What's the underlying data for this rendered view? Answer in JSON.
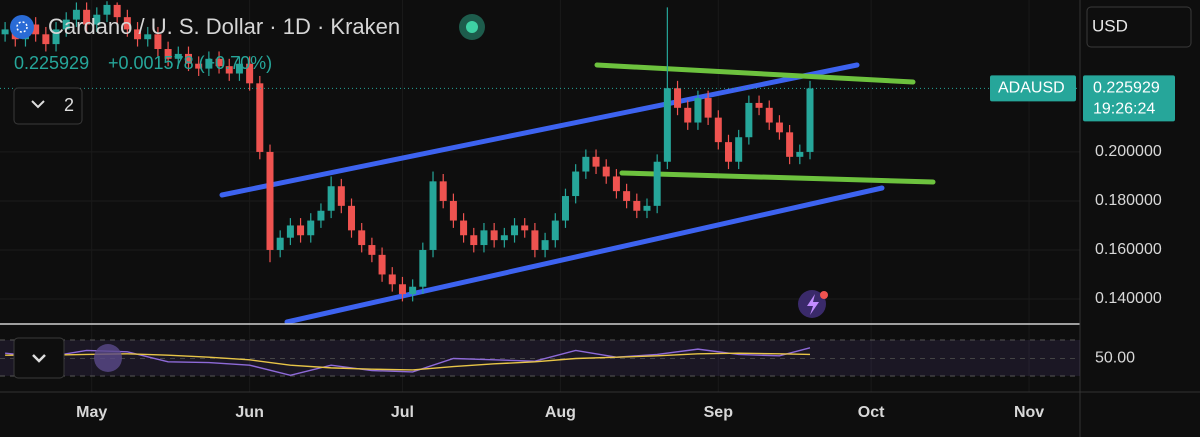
{
  "chart_data": {
    "type": "candlestick",
    "title": "Cardano / U. S. Dollar · 1D · Kraken",
    "last_price": 0.225929,
    "change": "+0.001578 (+0.70%)",
    "indicator_count": 2,
    "currency": "USD",
    "symbol": "ADAUSD",
    "countdown": "19:26:24",
    "up_color": "#26a69a",
    "down_color": "#ef5350",
    "grid": true,
    "xlim": [
      0,
      212
    ],
    "xticks": [
      {
        "value": 18,
        "label": "May"
      },
      {
        "value": 49,
        "label": "Jun"
      },
      {
        "value": 79,
        "label": "Jul"
      },
      {
        "value": 110,
        "label": "Aug"
      },
      {
        "value": 141,
        "label": "Sep"
      },
      {
        "value": 171,
        "label": "Oct"
      },
      {
        "value": 202,
        "label": "Nov"
      }
    ],
    "ylim": [
      0.1306,
      0.262
    ],
    "yticks": [
      {
        "value": 0.14,
        "label": "0.140000"
      },
      {
        "value": 0.16,
        "label": "0.160000"
      },
      {
        "value": 0.18,
        "label": "0.180000"
      },
      {
        "value": 0.2,
        "label": "0.200000"
      }
    ],
    "x": [
      1,
      3,
      5,
      7,
      9,
      11,
      13,
      15,
      17,
      19,
      21,
      23,
      25,
      27,
      29,
      31,
      33,
      35,
      37,
      39,
      41,
      43,
      45,
      47,
      49,
      51,
      53,
      55,
      57,
      59,
      61,
      63,
      65,
      67,
      69,
      71,
      73,
      75,
      77,
      79,
      81,
      83,
      85,
      87,
      89,
      91,
      93,
      95,
      97,
      99,
      101,
      103,
      105,
      107,
      109,
      111,
      113,
      115,
      117,
      119,
      121,
      123,
      125,
      127,
      129,
      131,
      133,
      135,
      137,
      139,
      141,
      143,
      145,
      147,
      149,
      151,
      153,
      155,
      157,
      159
    ],
    "open": [
      0.248,
      0.25,
      0.246,
      0.252,
      0.248,
      0.244,
      0.25,
      0.254,
      0.258,
      0.252,
      0.256,
      0.26,
      0.255,
      0.25,
      0.246,
      0.248,
      0.242,
      0.238,
      0.24,
      0.236,
      0.234,
      0.238,
      0.235,
      0.232,
      0.236,
      0.228,
      0.2,
      0.16,
      0.165,
      0.17,
      0.166,
      0.172,
      0.176,
      0.186,
      0.178,
      0.168,
      0.162,
      0.158,
      0.15,
      0.146,
      0.142,
      0.145,
      0.16,
      0.188,
      0.18,
      0.172,
      0.166,
      0.162,
      0.168,
      0.164,
      0.166,
      0.17,
      0.168,
      0.16,
      0.164,
      0.172,
      0.182,
      0.192,
      0.198,
      0.194,
      0.19,
      0.184,
      0.18,
      0.176,
      0.178,
      0.196,
      0.226,
      0.218,
      0.212,
      0.222,
      0.214,
      0.204,
      0.196,
      0.206,
      0.22,
      0.218,
      0.212,
      0.208,
      0.198,
      0.2
    ],
    "high": [
      0.253,
      0.253,
      0.255,
      0.255,
      0.251,
      0.253,
      0.257,
      0.261,
      0.261,
      0.259,
      0.2615,
      0.261,
      0.258,
      0.253,
      0.251,
      0.251,
      0.245,
      0.243,
      0.243,
      0.239,
      0.241,
      0.241,
      0.238,
      0.239,
      0.239,
      0.231,
      0.203,
      0.168,
      0.173,
      0.173,
      0.175,
      0.179,
      0.19,
      0.189,
      0.181,
      0.171,
      0.165,
      0.161,
      0.153,
      0.149,
      0.148,
      0.163,
      0.192,
      0.191,
      0.183,
      0.175,
      0.169,
      0.171,
      0.171,
      0.169,
      0.173,
      0.173,
      0.171,
      0.167,
      0.175,
      0.185,
      0.195,
      0.201,
      0.201,
      0.197,
      0.193,
      0.187,
      0.183,
      0.181,
      0.199,
      0.259,
      0.229,
      0.221,
      0.225,
      0.225,
      0.217,
      0.207,
      0.209,
      0.223,
      0.223,
      0.221,
      0.215,
      0.211,
      0.203,
      0.229
    ],
    "low": [
      0.245,
      0.243,
      0.243,
      0.245,
      0.241,
      0.241,
      0.247,
      0.251,
      0.249,
      0.249,
      0.253,
      0.252,
      0.247,
      0.243,
      0.243,
      0.239,
      0.235,
      0.235,
      0.233,
      0.231,
      0.231,
      0.232,
      0.229,
      0.229,
      0.225,
      0.197,
      0.155,
      0.157,
      0.162,
      0.163,
      0.163,
      0.169,
      0.173,
      0.175,
      0.165,
      0.159,
      0.155,
      0.147,
      0.143,
      0.139,
      0.139,
      0.142,
      0.157,
      0.177,
      0.169,
      0.163,
      0.159,
      0.159,
      0.161,
      0.161,
      0.163,
      0.165,
      0.157,
      0.157,
      0.161,
      0.169,
      0.179,
      0.189,
      0.191,
      0.187,
      0.181,
      0.177,
      0.173,
      0.173,
      0.175,
      0.193,
      0.215,
      0.209,
      0.209,
      0.211,
      0.201,
      0.193,
      0.193,
      0.203,
      0.215,
      0.209,
      0.205,
      0.195,
      0.195,
      0.197
    ],
    "close": [
      0.25,
      0.246,
      0.252,
      0.248,
      0.244,
      0.25,
      0.254,
      0.258,
      0.252,
      0.256,
      0.26,
      0.255,
      0.25,
      0.246,
      0.248,
      0.242,
      0.238,
      0.24,
      0.236,
      0.234,
      0.238,
      0.235,
      0.232,
      0.236,
      0.228,
      0.2,
      0.16,
      0.165,
      0.17,
      0.166,
      0.172,
      0.176,
      0.186,
      0.178,
      0.168,
      0.162,
      0.158,
      0.15,
      0.146,
      0.142,
      0.145,
      0.16,
      0.188,
      0.18,
      0.172,
      0.166,
      0.162,
      0.168,
      0.164,
      0.166,
      0.17,
      0.168,
      0.16,
      0.164,
      0.172,
      0.182,
      0.192,
      0.198,
      0.194,
      0.19,
      0.184,
      0.18,
      0.176,
      0.178,
      0.196,
      0.226,
      0.218,
      0.212,
      0.222,
      0.214,
      0.204,
      0.196,
      0.206,
      0.22,
      0.218,
      0.212,
      0.208,
      0.198,
      0.2,
      0.2259
    ],
    "rsi": {
      "ylim": [
        0,
        100
      ],
      "yticks": [
        {
          "value": 50,
          "label": "50.00"
        }
      ],
      "x": [
        1,
        9,
        17,
        25,
        33,
        41,
        49,
        57,
        65,
        73,
        81,
        89,
        97,
        105,
        113,
        121,
        129,
        137,
        145,
        153,
        159
      ],
      "values": [
        58,
        52,
        62,
        60,
        45,
        44,
        40,
        25,
        40,
        32,
        30,
        50,
        48,
        46,
        62,
        52,
        56,
        64,
        56,
        54,
        66
      ],
      "ma": [
        55,
        55,
        56,
        57,
        55,
        52,
        48,
        40,
        36,
        34,
        33,
        38,
        42,
        45,
        50,
        52,
        54,
        57,
        58,
        57,
        56
      ],
      "color": "#8e6ad8",
      "ma_color": "#e8c547"
    }
  }
}
